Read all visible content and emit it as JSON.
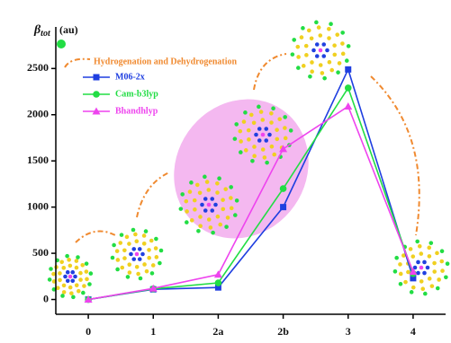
{
  "chart_data": {
    "type": "line",
    "ylabel": {
      "symbol": "β",
      "subscript": "tot",
      "unit": "(au)"
    },
    "annotation": "Hydrogenation and Dehydrogenation",
    "categories": [
      "0",
      "1",
      "2a",
      "2b",
      "3",
      "4"
    ],
    "series": [
      {
        "name": "M06-2x",
        "color": "#1f3fe0",
        "marker": "square",
        "values": [
          0,
          110,
          130,
          1000,
          2490,
          230
        ]
      },
      {
        "name": "Cam-b3lyp",
        "color": "#22dd44",
        "marker": "circle",
        "values": [
          0,
          115,
          180,
          1200,
          2290,
          280
        ]
      },
      {
        "name": "Bhandhlyp",
        "color": "#ee44ee",
        "marker": "triangle",
        "values": [
          0,
          120,
          270,
          1630,
          2090,
          300
        ]
      }
    ],
    "ylim": [
      -160,
      2950
    ],
    "yticks": [
      0,
      500,
      1000,
      1500,
      2000,
      2500
    ],
    "grid": false
  }
}
